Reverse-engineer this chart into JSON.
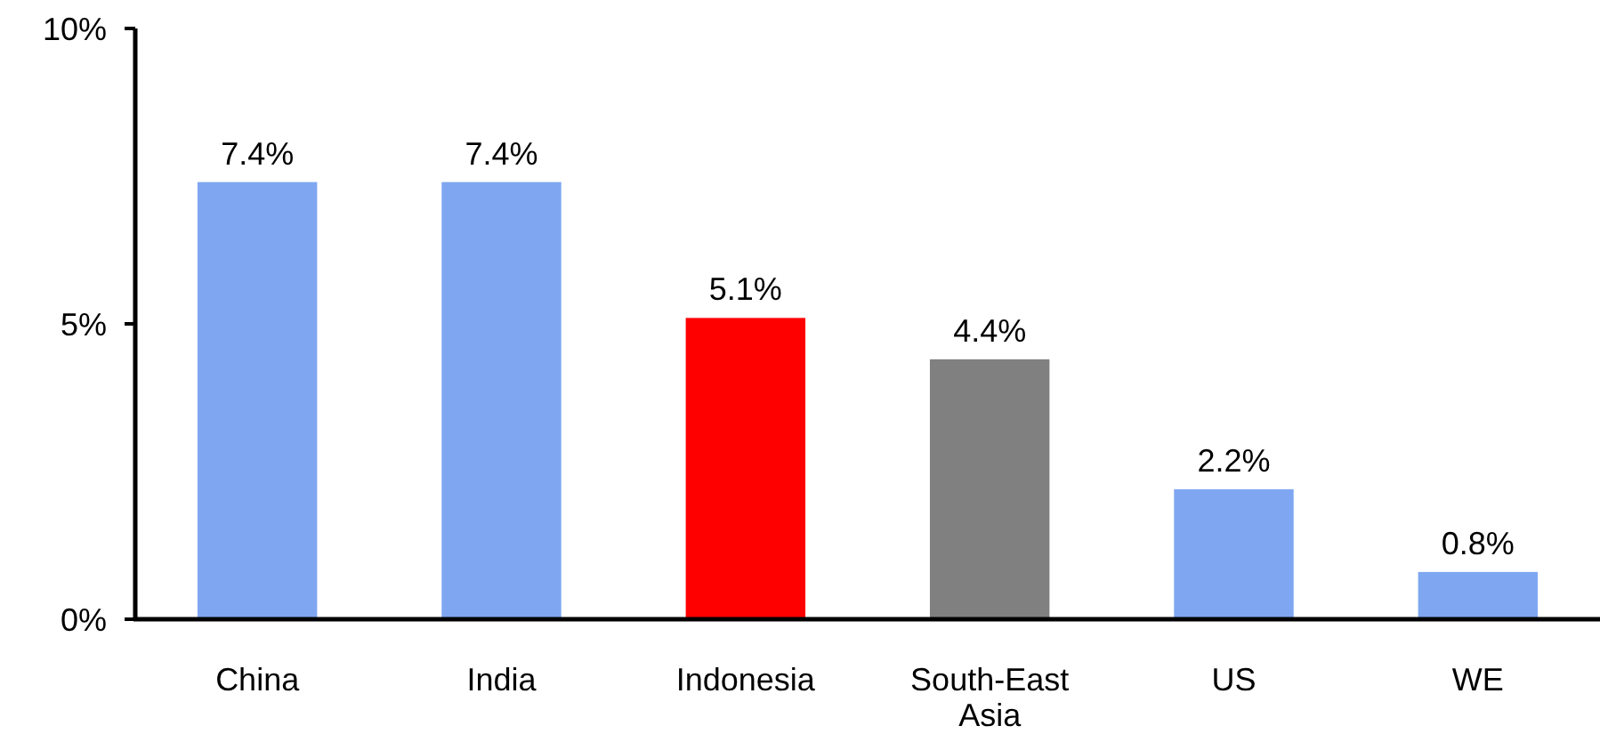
{
  "chart_data": {
    "type": "bar",
    "categories": [
      "China",
      "India",
      "Indonesia",
      "South-East Asia",
      "US",
      "WE"
    ],
    "values": [
      7.4,
      7.4,
      5.1,
      4.4,
      2.2,
      0.8
    ],
    "colors": [
      "#7fa7f1",
      "#7fa7f1",
      "#ff0000",
      "#808080",
      "#7fa7f1",
      "#7fa7f1"
    ],
    "value_labels": [
      "7.4%",
      "7.4%",
      "5.1%",
      "4.4%",
      "2.2%",
      "0.8%"
    ],
    "ylim": [
      0,
      10
    ],
    "yticks": [
      {
        "value": 0,
        "label": "0%"
      },
      {
        "value": 5,
        "label": "5%"
      },
      {
        "value": 10,
        "label": "10%"
      }
    ],
    "grid": false
  }
}
